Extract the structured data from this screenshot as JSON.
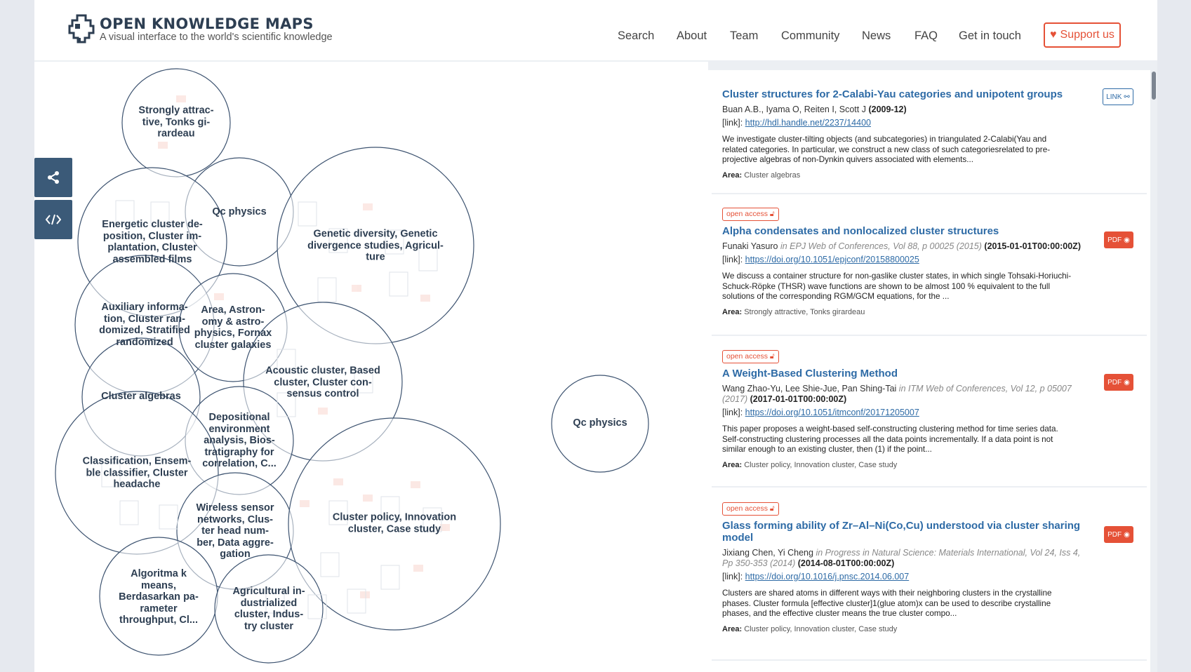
{
  "header": {
    "brand_title": "OPEN KNOWLEDGE MAPS",
    "brand_subtitle": "A visual interface to the world's scientific knowledge",
    "nav": [
      "Search",
      "About",
      "Team",
      "Community",
      "News",
      "FAQ",
      "Get in touch"
    ],
    "support_label": "Support us"
  },
  "tools": {
    "share_icon": "share-icon",
    "embed_icon": "code-icon"
  },
  "bubbles": [
    {
      "label": "Strongly attrac-\ntive, Tonks gi-\nrardeau"
    },
    {
      "label": "Qc physics"
    },
    {
      "label": "Energetic cluster de-\nposition, Cluster im-\nplantation, Cluster\nassembled films"
    },
    {
      "label": "Genetic diversity, Genetic\ndivergence studies, Agricul-\nture"
    },
    {
      "label": "Auxiliary informa-\ntion, Cluster ran-\ndomized, Stratified\nrandomized"
    },
    {
      "label": "Area, Astron-\nomy & astro-\nphysics, Fornax\ncluster galaxies"
    },
    {
      "label": "Acoustic cluster, Based\ncluster, Cluster con-\nsensus control"
    },
    {
      "label": "Cluster algebras"
    },
    {
      "label": "Depositional\nenvironment\nanalysis, Bios-\ntratigraphy for\ncorrelation, C..."
    },
    {
      "label": "Classification, Ensem-\nble classifier, Cluster\nheadache"
    },
    {
      "label": "Wireless sensor\nnetworks, Clus-\nter head num-\nber, Data aggre-\ngation"
    },
    {
      "label": "Cluster policy, Innovation\ncluster, Case study"
    },
    {
      "label": "Algoritma k\nmeans,\nBerdasarkan pa-\nrameter\nthroughput, Cl..."
    },
    {
      "label": "Agricultural in-\ndustrialized\ncluster, Indus-\ntry cluster"
    },
    {
      "label": "Qc physics"
    }
  ],
  "papers": [
    {
      "open_access": "",
      "title": "Cluster structures for 2-Calabi-Yau categories and unipotent groups",
      "authors": "Buan A.B., Iyama O, Reiten I, Scott J",
      "venue": "",
      "date": "(2009-12)",
      "link_prefix": "[link]:",
      "url": "http://hdl.handle.net/2237/14400",
      "abstract": "We investigate cluster-tilting objects (and subcategories) in triangulated 2-Calabi(Yau and related categories. In particular, we construct a new class of such categoriesrelated to pre-projective algebras of non-Dynkin quivers associated with elements...",
      "area_label": "Area:",
      "area": "Cluster algebras",
      "badge": "LINK"
    },
    {
      "open_access": "open access",
      "title": "Alpha condensates and nonlocalized cluster structures",
      "authors": "Funaki Yasuro",
      "venue": "in EPJ Web of Conferences, Vol 88, p 00025 (2015)",
      "date": "(2015-01-01T00:00:00Z)",
      "link_prefix": "[link]:",
      "url": "https://doi.org/10.1051/epjconf/20158800025",
      "abstract": "We discuss a container structure for non-gaslike cluster states, in which single Tohsaki-Horiuchi-Schuck-Röpke (THSR) wave functions are shown to be almost 100 % equivalent to the full solutions of the corresponding RGM/GCM equations, for the ...",
      "area_label": "Area:",
      "area": "Strongly attractive, Tonks girardeau",
      "badge": "PDF"
    },
    {
      "open_access": "open access",
      "title": "A Weight-Based Clustering Method",
      "authors": "Wang Zhao-Yu, Lee Shie-Jue, Pan Shing-Tai",
      "venue": "in ITM Web of Conferences, Vol 12, p 05007 (2017)",
      "date": "(2017-01-01T00:00:00Z)",
      "link_prefix": "[link]:",
      "url": "https://doi.org/10.1051/itmconf/20171205007",
      "abstract": "This paper proposes a weight-based self-constructing clustering method for time series data. Self-constructing clustering processes all the data points incrementally. If a data point is not similar enough to an existing cluster, then (1) if the point...",
      "area_label": "Area:",
      "area": "Cluster policy, Innovation cluster, Case study",
      "badge": "PDF"
    },
    {
      "open_access": "open access",
      "title": "Glass forming ability of Zr–Al–Ni(Co,Cu) understood via cluster sharing model",
      "authors": "Jixiang Chen, Yi Cheng",
      "venue": "in Progress in Natural Science: Materials International, Vol 24, Iss 4, Pp 350-353 (2014)",
      "date": "(2014-08-01T00:00:00Z)",
      "link_prefix": "[link]:",
      "url": "https://doi.org/10.1016/j.pnsc.2014.06.007",
      "abstract": "Clusters are shared atoms in different ways with their neighboring clusters in the crystalline phases. Cluster formula [effective cluster]1(glue atom)x can be used to describe crystalline phases, and the effective cluster means the true cluster compo...",
      "area_label": "Area:",
      "area": "Cluster policy, Innovation cluster, Case study",
      "badge": "PDF"
    }
  ],
  "colors": {
    "brand": "#2d3e52",
    "accent": "#e55137",
    "link": "#2e6ba6",
    "tool": "#3b5a78"
  }
}
